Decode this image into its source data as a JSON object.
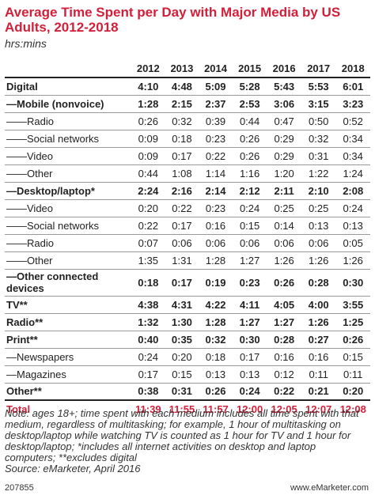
{
  "chart_data": {
    "type": "table",
    "title": "Average Time Spent per Day with Major Media by US Adults, 2012-2018",
    "subtitle": "hrs:mins",
    "columns": [
      "2012",
      "2013",
      "2014",
      "2015",
      "2016",
      "2017",
      "2018"
    ],
    "rows": [
      {
        "label": "Digital",
        "values": [
          "4:10",
          "4:48",
          "5:09",
          "5:28",
          "5:43",
          "5:53",
          "6:01"
        ],
        "bold": true,
        "tall": false
      },
      {
        "label": "—Mobile (nonvoice)",
        "values": [
          "1:28",
          "2:15",
          "2:37",
          "2:53",
          "3:06",
          "3:15",
          "3:23"
        ],
        "bold": true,
        "tall": false
      },
      {
        "label": "——Radio",
        "values": [
          "0:26",
          "0:32",
          "0:39",
          "0:44",
          "0:47",
          "0:50",
          "0:52"
        ],
        "bold": false,
        "tall": false
      },
      {
        "label": "——Social networks",
        "values": [
          "0:09",
          "0:18",
          "0:23",
          "0:26",
          "0:29",
          "0:32",
          "0:34"
        ],
        "bold": false,
        "tall": false
      },
      {
        "label": "——Video",
        "values": [
          "0:09",
          "0:17",
          "0:22",
          "0:26",
          "0:29",
          "0:31",
          "0:34"
        ],
        "bold": false,
        "tall": false
      },
      {
        "label": "——Other",
        "values": [
          "0:44",
          "1:08",
          "1:14",
          "1:16",
          "1:20",
          "1:22",
          "1:24"
        ],
        "bold": false,
        "tall": false
      },
      {
        "label": "—Desktop/laptop*",
        "values": [
          "2:24",
          "2:16",
          "2:14",
          "2:12",
          "2:11",
          "2:10",
          "2:08"
        ],
        "bold": true,
        "tall": false
      },
      {
        "label": "——Video",
        "values": [
          "0:20",
          "0:22",
          "0:23",
          "0:24",
          "0:25",
          "0:25",
          "0:24"
        ],
        "bold": false,
        "tall": false
      },
      {
        "label": "——Social networks",
        "values": [
          "0:22",
          "0:17",
          "0:16",
          "0:15",
          "0:14",
          "0:13",
          "0:13"
        ],
        "bold": false,
        "tall": false
      },
      {
        "label": "——Radio",
        "values": [
          "0:07",
          "0:06",
          "0:06",
          "0:06",
          "0:06",
          "0:06",
          "0:05"
        ],
        "bold": false,
        "tall": false
      },
      {
        "label": "——Other",
        "values": [
          "1:35",
          "1:31",
          "1:28",
          "1:27",
          "1:26",
          "1:26",
          "1:26"
        ],
        "bold": false,
        "tall": false
      },
      {
        "label": "—Other connected devices",
        "values": [
          "0:18",
          "0:17",
          "0:19",
          "0:23",
          "0:26",
          "0:28",
          "0:30"
        ],
        "bold": true,
        "tall": true
      },
      {
        "label": "TV**",
        "values": [
          "4:38",
          "4:31",
          "4:22",
          "4:11",
          "4:05",
          "4:00",
          "3:55"
        ],
        "bold": true,
        "tall": false
      },
      {
        "label": "Radio**",
        "values": [
          "1:32",
          "1:30",
          "1:28",
          "1:27",
          "1:27",
          "1:26",
          "1:25"
        ],
        "bold": true,
        "tall": false
      },
      {
        "label": "Print**",
        "values": [
          "0:40",
          "0:35",
          "0:32",
          "0:30",
          "0:28",
          "0:27",
          "0:26"
        ],
        "bold": true,
        "tall": false
      },
      {
        "label": "—Newspapers",
        "values": [
          "0:24",
          "0:20",
          "0:18",
          "0:17",
          "0:16",
          "0:16",
          "0:15"
        ],
        "bold": false,
        "tall": false
      },
      {
        "label": "—Magazines",
        "values": [
          "0:17",
          "0:15",
          "0:13",
          "0:13",
          "0:12",
          "0:11",
          "0:11"
        ],
        "bold": false,
        "tall": false
      },
      {
        "label": "Other**",
        "values": [
          "0:38",
          "0:31",
          "0:26",
          "0:24",
          "0:22",
          "0:21",
          "0:20"
        ],
        "bold": true,
        "tall": false
      }
    ],
    "total": {
      "label": "Total",
      "values": [
        "11:39",
        "11:55",
        "11:57",
        "12:00",
        "12:05",
        "12:07",
        "12:08"
      ]
    }
  },
  "note": "Note: ages 18+; time spent with each medium includes all time spent with that medium, regardless of multitasking; for example, 1 hour of multitasking on desktop/laptop while watching TV is counted as 1 hour for TV and 1 hour for desktop/laptop; *includes all internet activities on desktop and laptop computers; **excludes digital",
  "source": "Source: eMarketer, April 2016",
  "chart_id": "207855",
  "brand": "www.eMarketer.com",
  "colors": {
    "accent": "#d2203a",
    "text": "#222222"
  }
}
